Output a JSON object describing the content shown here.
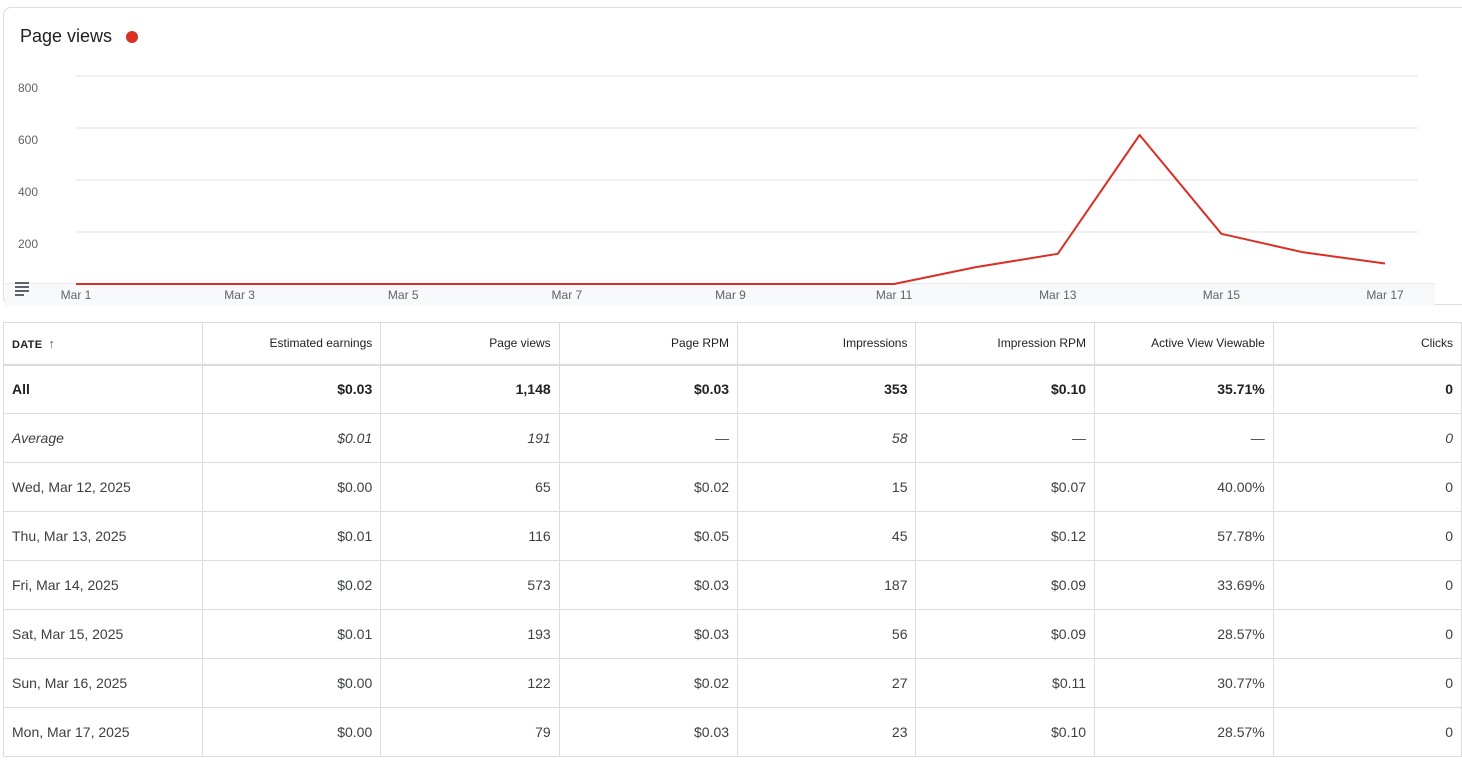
{
  "chart": {
    "title": "Page views",
    "series_color": "#d93025"
  },
  "chart_data": {
    "type": "line",
    "title": "Page views",
    "x": [
      "Mar 1",
      "Mar 2",
      "Mar 3",
      "Mar 4",
      "Mar 5",
      "Mar 6",
      "Mar 7",
      "Mar 8",
      "Mar 9",
      "Mar 10",
      "Mar 11",
      "Mar 12",
      "Mar 13",
      "Mar 14",
      "Mar 15",
      "Mar 16",
      "Mar 17"
    ],
    "x_tick_labels": [
      "Mar 1",
      "Mar 3",
      "Mar 5",
      "Mar 7",
      "Mar 9",
      "Mar 11",
      "Mar 13",
      "Mar 15",
      "Mar 17"
    ],
    "series": [
      {
        "values": [
          0,
          0,
          0,
          0,
          0,
          0,
          0,
          0,
          0,
          0,
          0,
          65,
          116,
          573,
          193,
          122,
          79
        ]
      }
    ],
    "y_ticks": [
      200,
      400,
      600,
      800
    ],
    "ylim": [
      0,
      800
    ],
    "grid": true
  },
  "table": {
    "headers": {
      "date": "DATE",
      "sort_icon": "↑",
      "cols": [
        "Estimated earnings",
        "Page views",
        "Page RPM",
        "Impressions",
        "Impression RPM",
        "Active View Viewable",
        "Clicks"
      ]
    },
    "total": {
      "label": "All",
      "values": [
        "$0.03",
        "1,148",
        "$0.03",
        "353",
        "$0.10",
        "35.71%",
        "0"
      ]
    },
    "average": {
      "label": "Average",
      "values": [
        "$0.01",
        "191",
        "—",
        "58",
        "—",
        "—",
        "0"
      ]
    },
    "rows": [
      {
        "date": "Wed, Mar 12, 2025",
        "values": [
          "$0.00",
          "65",
          "$0.02",
          "15",
          "$0.07",
          "40.00%",
          "0"
        ]
      },
      {
        "date": "Thu, Mar 13, 2025",
        "values": [
          "$0.01",
          "116",
          "$0.05",
          "45",
          "$0.12",
          "57.78%",
          "0"
        ]
      },
      {
        "date": "Fri, Mar 14, 2025",
        "values": [
          "$0.02",
          "573",
          "$0.03",
          "187",
          "$0.09",
          "33.69%",
          "0"
        ]
      },
      {
        "date": "Sat, Mar 15, 2025",
        "values": [
          "$0.01",
          "193",
          "$0.03",
          "56",
          "$0.09",
          "28.57%",
          "0"
        ]
      },
      {
        "date": "Sun, Mar 16, 2025",
        "values": [
          "$0.00",
          "122",
          "$0.02",
          "27",
          "$0.11",
          "30.77%",
          "0"
        ]
      },
      {
        "date": "Mon, Mar 17, 2025",
        "values": [
          "$0.00",
          "79",
          "$0.03",
          "23",
          "$0.10",
          "28.57%",
          "0"
        ]
      }
    ]
  }
}
